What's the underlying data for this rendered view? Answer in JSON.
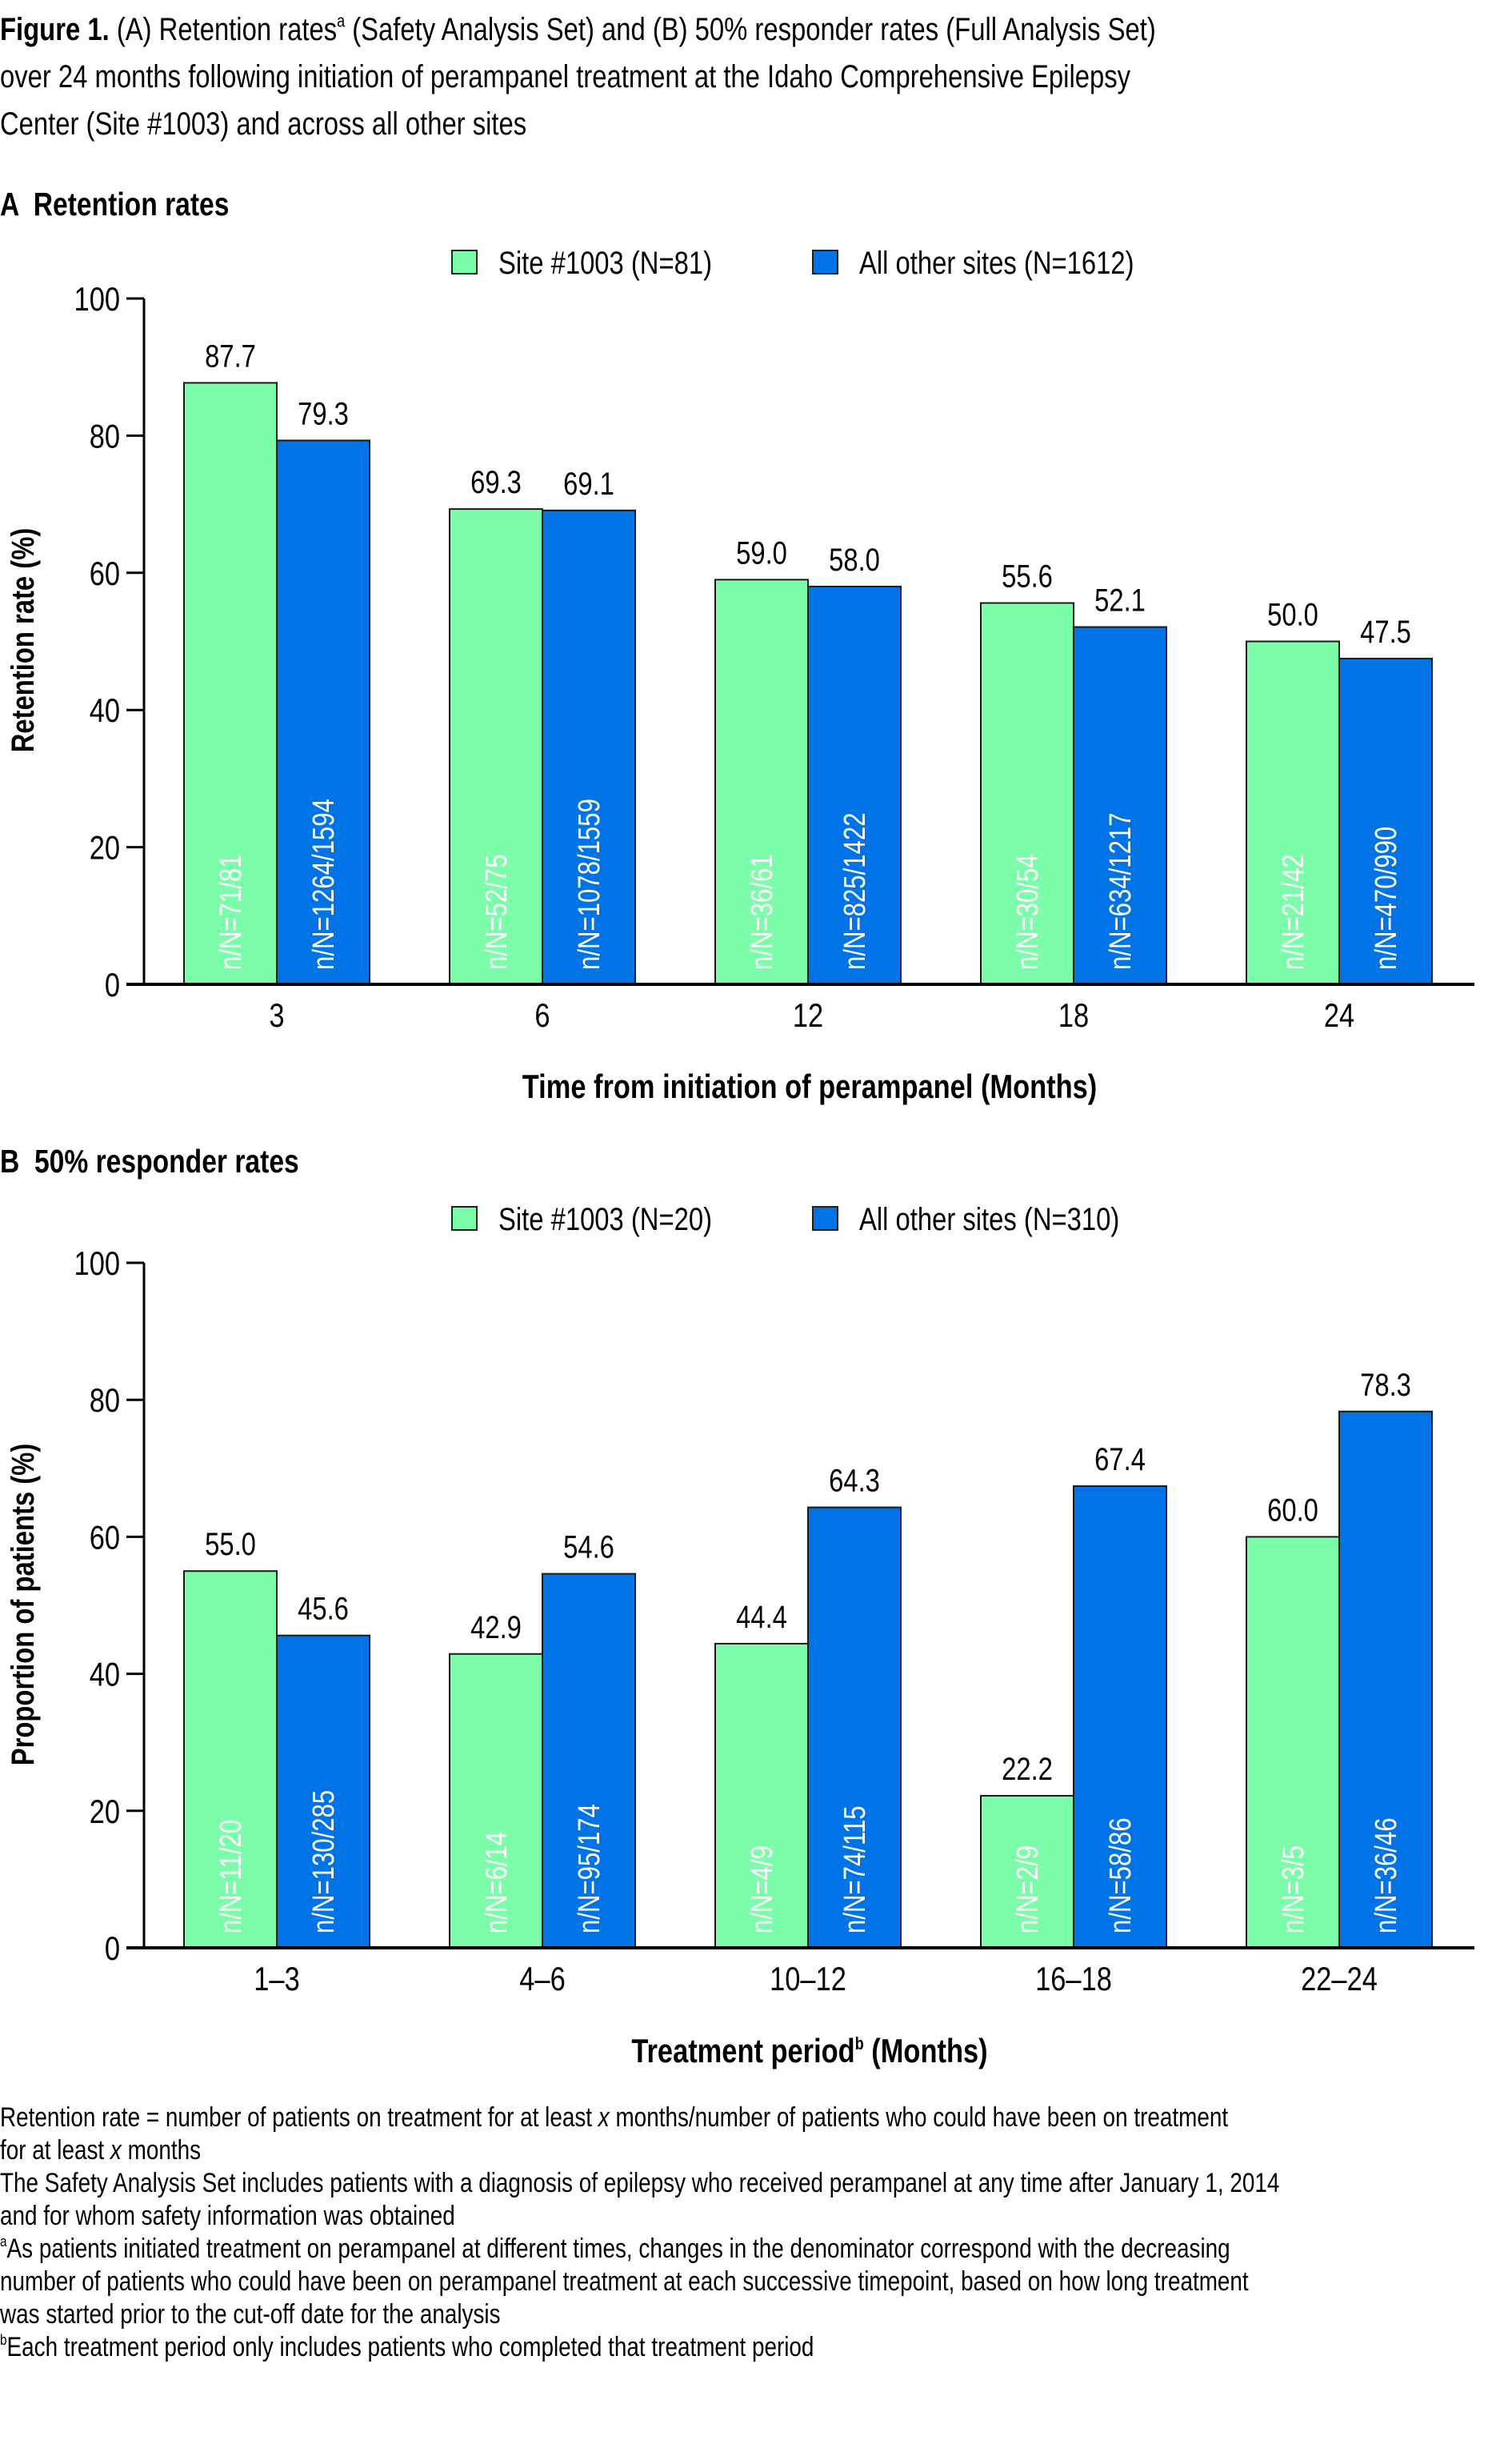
{
  "figure": {
    "label": "Figure 1.",
    "title_lines": [
      {
        "before_sup": "(A) Retention rates",
        "sup": "a",
        "after_sup": " (Safety Analysis Set) and (B) 50% responder rates (Full Analysis Set)"
      },
      {
        "text": "over 24 months following initiation of perampanel treatment at the Idaho Comprehensive Epilepsy"
      },
      {
        "text": "Center (Site #1003) and across all other sites"
      }
    ]
  },
  "colors": {
    "site_1003": "#7CFDAA",
    "all_other_sites": "#0073E6",
    "inner_label_site": "#ffffff",
    "inner_label_other": "#ffffff",
    "axis": "#000000"
  },
  "chart_data": [
    {
      "type": "bar",
      "panel": "A",
      "title": "A  Retention rates",
      "xlabel": "Time from initiation of perampanel (Months)",
      "xlabel_sup": "",
      "ylabel": "Retention rate (%)",
      "ylim": [
        0,
        100
      ],
      "yticks": [
        0,
        20,
        40,
        60,
        80,
        100
      ],
      "grid": false,
      "legend_position": "top-center",
      "categories": [
        "3",
        "6",
        "12",
        "18",
        "24"
      ],
      "series": [
        {
          "name": "Site #1003 (N=81)",
          "key": "site_1003",
          "values": [
            87.7,
            69.3,
            59.0,
            55.6,
            50.0
          ],
          "value_labels": [
            "87.7",
            "69.3",
            "59.0",
            "55.6",
            "50.0"
          ],
          "n_labels": [
            "n/N=71/81",
            "n/N=52/75",
            "n/N=36/61",
            "n/N=30/54",
            "n/N=21/42"
          ]
        },
        {
          "name": "All other sites (N=1612)",
          "key": "all_other_sites",
          "values": [
            79.3,
            69.1,
            58.0,
            52.1,
            47.5
          ],
          "value_labels": [
            "79.3",
            "69.1",
            "58.0",
            "52.1",
            "47.5"
          ],
          "n_labels": [
            "n/N=1264/1594",
            "n/N=1078/1559",
            "n/N=825/1422",
            "n/N=634/1217",
            "n/N=470/990"
          ]
        }
      ]
    },
    {
      "type": "bar",
      "panel": "B",
      "title": "B  50% responder rates",
      "xlabel": "Treatment period",
      "xlabel_sup": "b",
      "xlabel_after": " (Months)",
      "ylabel": "Proportion of patients (%)",
      "ylim": [
        0,
        100
      ],
      "yticks": [
        0,
        20,
        40,
        60,
        80,
        100
      ],
      "grid": false,
      "legend_position": "top-center",
      "categories": [
        "1–3",
        "4–6",
        "10–12",
        "16–18",
        "22–24"
      ],
      "series": [
        {
          "name": "Site #1003 (N=20)",
          "key": "site_1003",
          "values": [
            55.0,
            42.9,
            44.4,
            22.2,
            60.0
          ],
          "value_labels": [
            "55.0",
            "42.9",
            "44.4",
            "22.2",
            "60.0"
          ],
          "n_labels": [
            "n/N=11/20",
            "n/N=6/14",
            "n/N=4/9",
            "n/N=2/9",
            "n/N=3/5"
          ]
        },
        {
          "name": "All other sites (N=310)",
          "key": "all_other_sites",
          "values": [
            45.6,
            54.6,
            64.3,
            67.4,
            78.3
          ],
          "value_labels": [
            "45.6",
            "54.6",
            "64.3",
            "67.4",
            "78.3"
          ],
          "n_labels": [
            "n/N=130/285",
            "n/N=95/174",
            "n/N=74/115",
            "n/N=58/86",
            "n/N=36/46"
          ]
        }
      ]
    }
  ],
  "footnotes": [
    {
      "parts": [
        {
          "t": "Retention rate = number of patients on treatment for at least "
        },
        {
          "t": "x",
          "i": true
        },
        {
          "t": " months/number of patients who could have been on treatment"
        }
      ]
    },
    {
      "parts": [
        {
          "t": "for at least "
        },
        {
          "t": "x",
          "i": true
        },
        {
          "t": " months"
        }
      ]
    },
    {
      "parts": [
        {
          "t": "The Safety Analysis Set includes patients with a diagnosis of epilepsy who received perampanel at any time after January 1, 2014"
        }
      ]
    },
    {
      "parts": [
        {
          "t": "and for whom safety information was obtained"
        }
      ]
    },
    {
      "parts": [
        {
          "t": "a",
          "sup": true
        },
        {
          "t": "As patients initiated treatment on perampanel at different times, changes in the denominator correspond with the decreasing"
        }
      ]
    },
    {
      "parts": [
        {
          "t": "number of patients who could have been on perampanel treatment at each successive timepoint, based on how long treatment"
        }
      ]
    },
    {
      "parts": [
        {
          "t": "was started prior to the cut-off date for the analysis"
        }
      ]
    },
    {
      "parts": [
        {
          "t": "b",
          "sup": true
        },
        {
          "t": "Each treatment period only includes patients who completed that treatment period"
        }
      ]
    }
  ]
}
